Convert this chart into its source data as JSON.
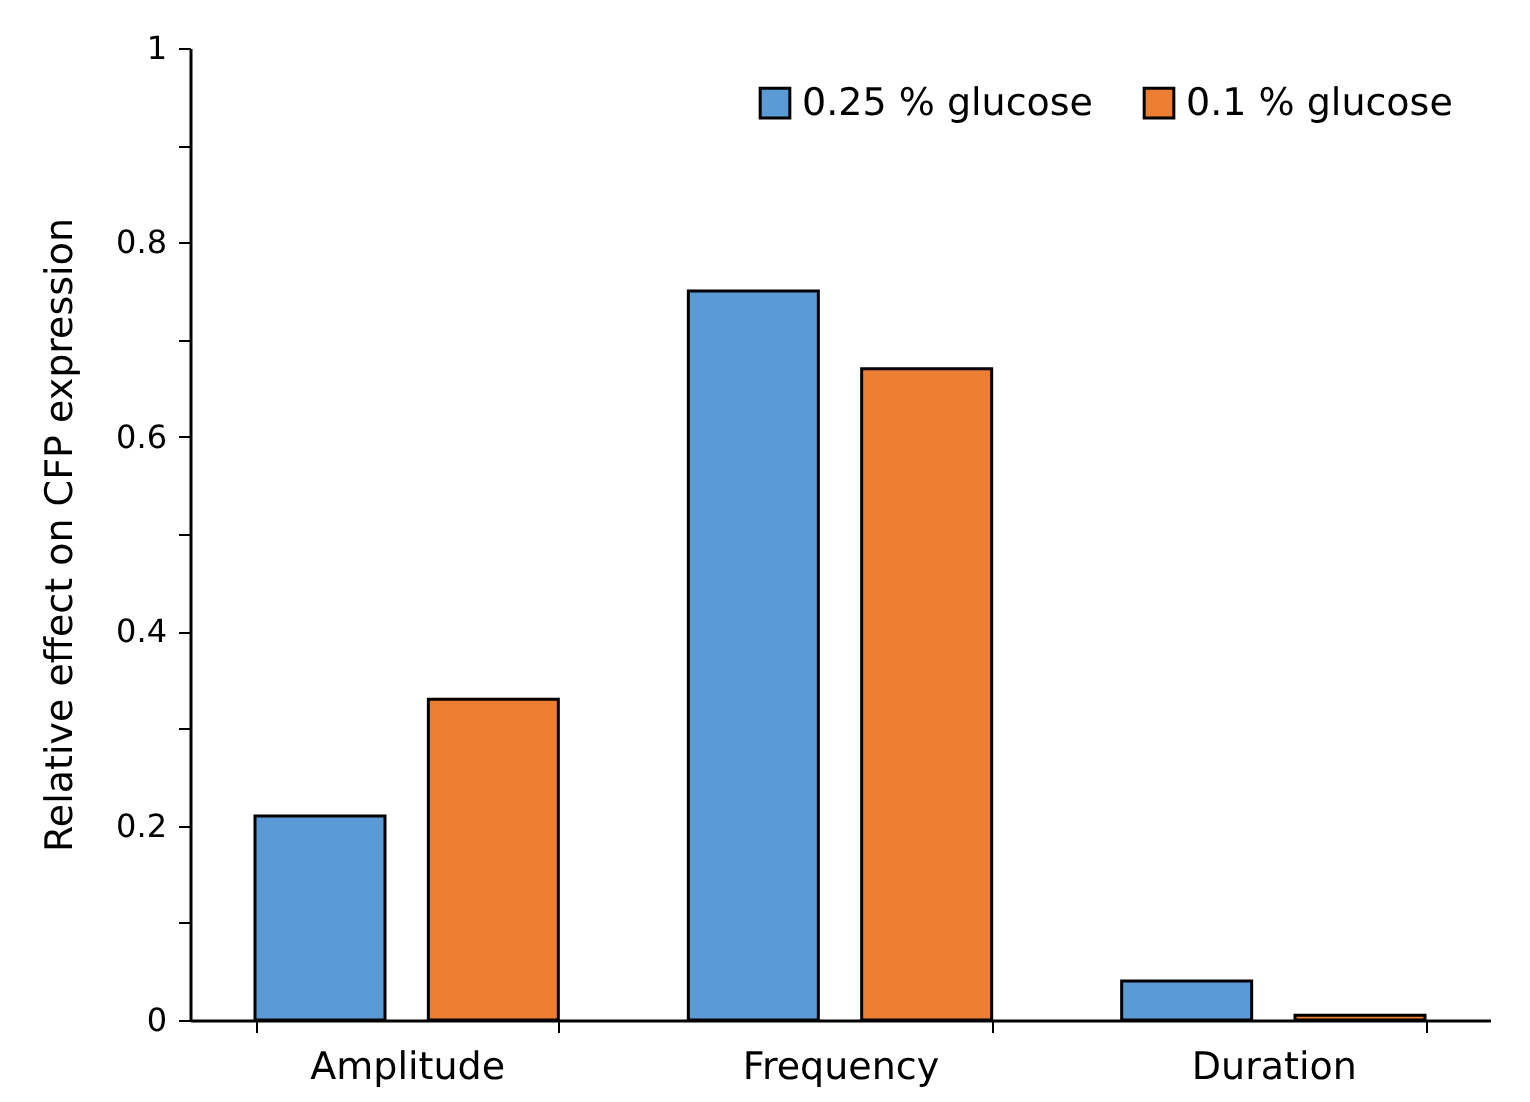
{
  "chart_data": {
    "type": "bar",
    "ylabel": "Relative effect on CFP expression",
    "categories": [
      "Amplitude",
      "Frequency",
      "Duration"
    ],
    "series": [
      {
        "name": "0.25 % glucose",
        "color": "#5b9bd5",
        "values": [
          0.21,
          0.75,
          0.04
        ]
      },
      {
        "name": "0.1 % glucose",
        "color": "#ed7d31",
        "values": [
          0.33,
          0.67,
          0.005
        ]
      }
    ],
    "ylim": [
      0,
      1
    ],
    "yticks": [
      0,
      {
        "value": 0.1,
        "label": null
      },
      0.2,
      {
        "value": 0.3,
        "label": null
      },
      0.4,
      {
        "value": 0.5,
        "label": null
      },
      0.6,
      {
        "value": 0.7,
        "label": null
      },
      0.8,
      {
        "value": 0.9,
        "label": null
      },
      1
    ],
    "grid": false,
    "legend": "top right"
  }
}
